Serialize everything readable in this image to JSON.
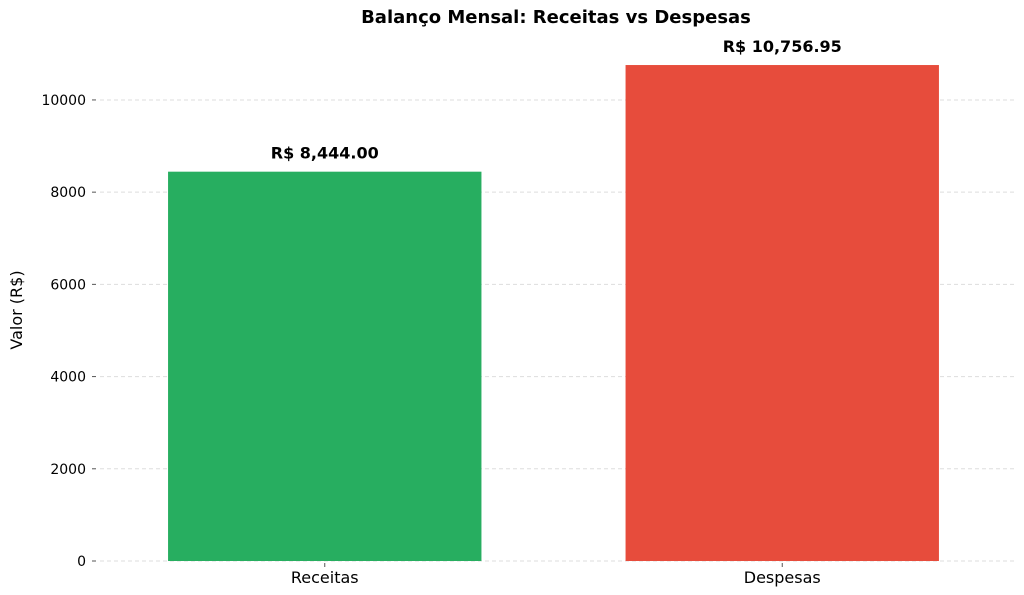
{
  "chart_data": {
    "type": "bar",
    "title": "Balanço Mensal: Receitas vs Despesas",
    "xlabel": "",
    "ylabel": "Valor (R$)",
    "categories": [
      "Receitas",
      "Despesas"
    ],
    "values": [
      8444.0,
      10756.95
    ],
    "data_labels": [
      "R$ 8,444.00",
      "R$ 10,756.95"
    ],
    "colors": [
      "#27ae60",
      "#e74c3c"
    ],
    "ylim": [
      0,
      11300
    ],
    "yticks": [
      0,
      2000,
      4000,
      6000,
      8000,
      10000
    ],
    "grid": true
  }
}
